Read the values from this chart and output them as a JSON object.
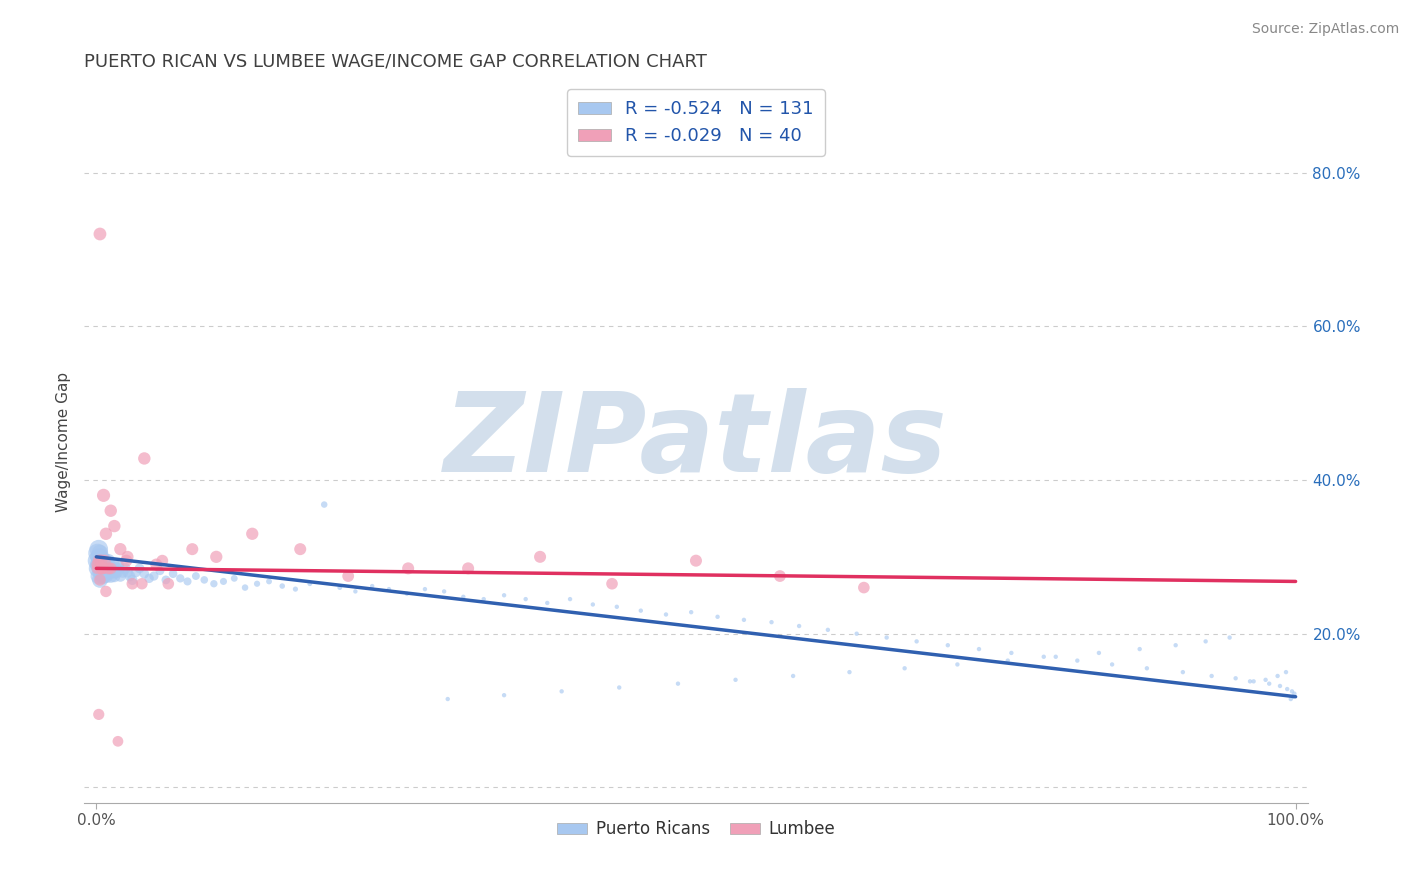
{
  "title": "PUERTO RICAN VS LUMBEE WAGE/INCOME GAP CORRELATION CHART",
  "source": "Source: ZipAtlas.com",
  "ylabel": "Wage/Income Gap",
  "xlim": [
    -0.01,
    1.01
  ],
  "ylim": [
    -0.02,
    0.92
  ],
  "yticks": [
    0.0,
    0.2,
    0.4,
    0.6,
    0.8
  ],
  "ytick_labels_right": [
    "",
    "20.0%",
    "40.0%",
    "60.0%",
    "80.0%"
  ],
  "xticks": [
    0.0,
    1.0
  ],
  "xtick_labels": [
    "0.0%",
    "100.0%"
  ],
  "grid_color": "#cccccc",
  "background_color": "#ffffff",
  "title_color": "#404040",
  "title_fontsize": 13,
  "series": [
    {
      "name": "Puerto Ricans",
      "R": -0.524,
      "N": 131,
      "color": "#a8c8f0",
      "line_color": "#3060b0",
      "regression_start_y": 0.3,
      "regression_end_y": 0.118
    },
    {
      "name": "Lumbee",
      "R": -0.029,
      "N": 40,
      "color": "#f0a0b8",
      "line_color": "#e03060",
      "regression_start_y": 0.285,
      "regression_end_y": 0.268
    }
  ],
  "legend_color": "#2255aa",
  "watermark_text": "ZIPatlas",
  "watermark_color": "#c8d8e8",
  "watermark_fontsize": 80,
  "pr_x": [
    0.001,
    0.001,
    0.001,
    0.002,
    0.002,
    0.002,
    0.002,
    0.003,
    0.003,
    0.003,
    0.003,
    0.004,
    0.004,
    0.004,
    0.005,
    0.005,
    0.005,
    0.006,
    0.006,
    0.006,
    0.007,
    0.007,
    0.008,
    0.008,
    0.009,
    0.009,
    0.01,
    0.01,
    0.011,
    0.012,
    0.013,
    0.014,
    0.015,
    0.015,
    0.016,
    0.017,
    0.018,
    0.019,
    0.02,
    0.022,
    0.024,
    0.026,
    0.028,
    0.03,
    0.033,
    0.036,
    0.04,
    0.044,
    0.048,
    0.053,
    0.058,
    0.064,
    0.07,
    0.076,
    0.083,
    0.09,
    0.098,
    0.106,
    0.115,
    0.124,
    0.134,
    0.144,
    0.155,
    0.166,
    0.178,
    0.19,
    0.203,
    0.216,
    0.23,
    0.244,
    0.259,
    0.274,
    0.29,
    0.306,
    0.323,
    0.34,
    0.358,
    0.376,
    0.395,
    0.414,
    0.434,
    0.454,
    0.475,
    0.496,
    0.518,
    0.54,
    0.563,
    0.586,
    0.61,
    0.634,
    0.659,
    0.684,
    0.71,
    0.736,
    0.763,
    0.79,
    0.818,
    0.847,
    0.876,
    0.906,
    0.93,
    0.95,
    0.965,
    0.978,
    0.987,
    0.993,
    0.997,
    0.999,
    0.998,
    0.996,
    0.992,
    0.985,
    0.975,
    0.962,
    0.945,
    0.925,
    0.9,
    0.87,
    0.836,
    0.8,
    0.76,
    0.718,
    0.674,
    0.628,
    0.581,
    0.533,
    0.485,
    0.436,
    0.388,
    0.34,
    0.293
  ],
  "pr_y": [
    0.295,
    0.305,
    0.285,
    0.31,
    0.29,
    0.3,
    0.275,
    0.295,
    0.285,
    0.305,
    0.27,
    0.28,
    0.29,
    0.3,
    0.285,
    0.275,
    0.295,
    0.285,
    0.275,
    0.29,
    0.28,
    0.295,
    0.285,
    0.275,
    0.29,
    0.28,
    0.285,
    0.295,
    0.28,
    0.275,
    0.285,
    0.29,
    0.28,
    0.275,
    0.285,
    0.28,
    0.29,
    0.285,
    0.275,
    0.28,
    0.285,
    0.28,
    0.275,
    0.27,
    0.28,
    0.285,
    0.278,
    0.272,
    0.275,
    0.282,
    0.27,
    0.278,
    0.272,
    0.268,
    0.275,
    0.27,
    0.265,
    0.268,
    0.272,
    0.26,
    0.265,
    0.268,
    0.262,
    0.258,
    0.265,
    0.368,
    0.26,
    0.255,
    0.262,
    0.258,
    0.252,
    0.258,
    0.255,
    0.248,
    0.245,
    0.25,
    0.245,
    0.24,
    0.245,
    0.238,
    0.235,
    0.23,
    0.225,
    0.228,
    0.222,
    0.218,
    0.215,
    0.21,
    0.205,
    0.2,
    0.195,
    0.19,
    0.185,
    0.18,
    0.175,
    0.17,
    0.165,
    0.16,
    0.155,
    0.15,
    0.145,
    0.142,
    0.138,
    0.135,
    0.132,
    0.128,
    0.125,
    0.122,
    0.118,
    0.115,
    0.15,
    0.145,
    0.14,
    0.138,
    0.195,
    0.19,
    0.185,
    0.18,
    0.175,
    0.17,
    0.165,
    0.16,
    0.155,
    0.15,
    0.145,
    0.14,
    0.135,
    0.13,
    0.125,
    0.12,
    0.115
  ],
  "pr_sizes": [
    200,
    180,
    160,
    180,
    160,
    150,
    140,
    160,
    150,
    140,
    130,
    150,
    140,
    130,
    140,
    130,
    120,
    130,
    120,
    115,
    120,
    110,
    115,
    105,
    110,
    100,
    105,
    95,
    100,
    95,
    90,
    88,
    85,
    80,
    78,
    75,
    72,
    70,
    68,
    65,
    62,
    60,
    58,
    55,
    52,
    50,
    48,
    46,
    44,
    42,
    40,
    38,
    36,
    34,
    32,
    30,
    28,
    26,
    24,
    22,
    20,
    18,
    16,
    14,
    12,
    22,
    12,
    10,
    10,
    10,
    10,
    10,
    10,
    10,
    10,
    10,
    10,
    10,
    10,
    10,
    10,
    10,
    10,
    10,
    10,
    10,
    10,
    10,
    10,
    10,
    10,
    10,
    10,
    10,
    10,
    10,
    10,
    10,
    10,
    10,
    10,
    10,
    10,
    10,
    10,
    10,
    10,
    10,
    10,
    10,
    10,
    10,
    10,
    10,
    10,
    10,
    10,
    10,
    10,
    10,
    10,
    10,
    10,
    10,
    10,
    10,
    10,
    10,
    10,
    10,
    10
  ],
  "lumbee_x": [
    0.001,
    0.002,
    0.003,
    0.004,
    0.004,
    0.005,
    0.006,
    0.007,
    0.008,
    0.01,
    0.012,
    0.015,
    0.02,
    0.025,
    0.03,
    0.04,
    0.05,
    0.06,
    0.08,
    0.1,
    0.13,
    0.17,
    0.21,
    0.26,
    0.31,
    0.37,
    0.43,
    0.5,
    0.57,
    0.64,
    0.001,
    0.002,
    0.003,
    0.005,
    0.008,
    0.012,
    0.018,
    0.026,
    0.038,
    0.055
  ],
  "lumbee_y": [
    0.29,
    0.295,
    0.72,
    0.285,
    0.295,
    0.285,
    0.38,
    0.295,
    0.33,
    0.285,
    0.36,
    0.34,
    0.31,
    0.295,
    0.265,
    0.428,
    0.29,
    0.265,
    0.31,
    0.3,
    0.33,
    0.31,
    0.275,
    0.285,
    0.285,
    0.3,
    0.265,
    0.295,
    0.275,
    0.26,
    0.285,
    0.095,
    0.27,
    0.285,
    0.255,
    0.285,
    0.06,
    0.3,
    0.265,
    0.295
  ],
  "lumbee_sizes": [
    80,
    75,
    85,
    75,
    80,
    75,
    90,
    75,
    80,
    75,
    80,
    80,
    78,
    75,
    70,
    80,
    75,
    70,
    75,
    78,
    78,
    75,
    72,
    75,
    75,
    75,
    70,
    75,
    72,
    70,
    72,
    65,
    70,
    72,
    68,
    72,
    60,
    75,
    68,
    72
  ]
}
